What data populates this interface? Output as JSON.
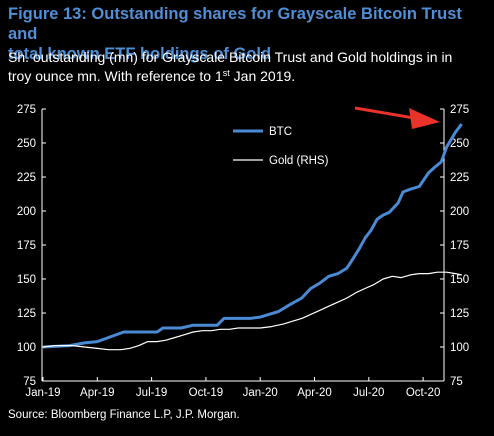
{
  "title_line1": "Figure 13: Outstanding shares for Grayscale Bitcoin Trust and",
  "title_line2": "total known ETF holdings of Gold",
  "subtitle_line1": "Sh. outstanding (mn) for Grayscale Bitcoin Trust and Gold holdings in in",
  "subtitle_line2_pre": "troy ounce mn. With reference to 1",
  "subtitle_sup": "st",
  "subtitle_line2_post": " Jan 2019.",
  "source": "Source: Bloomberg Finance L.P, J.P. Morgan.",
  "colors": {
    "btc": "#4a8ad4",
    "gold": "#ffffff",
    "arrow": "#e8322a",
    "title": "#4f8fd6",
    "background": "#000000"
  },
  "chart_data": {
    "type": "line",
    "x_ticks": [
      "Jan-19",
      "Apr-19",
      "Jul-19",
      "Oct-19",
      "Jan-20",
      "Apr-20",
      "Jul-20",
      "Oct-20"
    ],
    "y_ticks_left": [
      75,
      100,
      125,
      150,
      175,
      200,
      225,
      250,
      275
    ],
    "y_ticks_right": [
      75,
      100,
      125,
      150,
      175,
      200,
      225,
      250,
      275
    ],
    "ylim": [
      75,
      275
    ],
    "legend_position": "top-left",
    "annotation": "red arrow pointing at the latest BTC value (top-right)",
    "series": [
      {
        "name": "BTC",
        "axis": "left",
        "color": "#4a8ad4",
        "points": [
          [
            "2019-01-01",
            100
          ],
          [
            "2019-02-15",
            101
          ],
          [
            "2019-03-10",
            103
          ],
          [
            "2019-04-01",
            104
          ],
          [
            "2019-04-20",
            107
          ],
          [
            "2019-05-15",
            111
          ],
          [
            "2019-06-15",
            111
          ],
          [
            "2019-07-10",
            111
          ],
          [
            "2019-07-20",
            114
          ],
          [
            "2019-08-20",
            114
          ],
          [
            "2019-09-10",
            116
          ],
          [
            "2019-10-01",
            116
          ],
          [
            "2019-10-20",
            116
          ],
          [
            "2019-11-01",
            121
          ],
          [
            "2019-12-15",
            121
          ],
          [
            "2020-01-01",
            122
          ],
          [
            "2020-02-01",
            126
          ],
          [
            "2020-02-20",
            131
          ],
          [
            "2020-03-10",
            136
          ],
          [
            "2020-03-25",
            143
          ],
          [
            "2020-04-10",
            147
          ],
          [
            "2020-04-25",
            152
          ],
          [
            "2020-05-10",
            154
          ],
          [
            "2020-05-25",
            158
          ],
          [
            "2020-06-05",
            165
          ],
          [
            "2020-06-15",
            172
          ],
          [
            "2020-06-25",
            180
          ],
          [
            "2020-07-05",
            186
          ],
          [
            "2020-07-15",
            194
          ],
          [
            "2020-07-25",
            197
          ],
          [
            "2020-08-05",
            199
          ],
          [
            "2020-08-20",
            206
          ],
          [
            "2020-08-28",
            214
          ],
          [
            "2020-09-10",
            216
          ],
          [
            "2020-09-25",
            218
          ],
          [
            "2020-10-10",
            228
          ],
          [
            "2020-10-20",
            232
          ],
          [
            "2020-11-01",
            236
          ],
          [
            "2020-11-10",
            247
          ],
          [
            "2020-11-25",
            258
          ],
          [
            "2020-12-05",
            264
          ]
        ]
      },
      {
        "name": "Gold (RHS)",
        "axis": "right",
        "color": "#ffffff",
        "points": [
          [
            "2019-01-01",
            100
          ],
          [
            "2019-01-20",
            101
          ],
          [
            "2019-02-20",
            101
          ],
          [
            "2019-03-10",
            100
          ],
          [
            "2019-04-01",
            99
          ],
          [
            "2019-04-20",
            98
          ],
          [
            "2019-05-10",
            98
          ],
          [
            "2019-05-25",
            99
          ],
          [
            "2019-06-10",
            101
          ],
          [
            "2019-06-25",
            104
          ],
          [
            "2019-07-10",
            104
          ],
          [
            "2019-07-25",
            105
          ],
          [
            "2019-08-10",
            107
          ],
          [
            "2019-08-25",
            109
          ],
          [
            "2019-09-10",
            111
          ],
          [
            "2019-09-25",
            112
          ],
          [
            "2019-10-10",
            112
          ],
          [
            "2019-10-25",
            113
          ],
          [
            "2019-11-10",
            113
          ],
          [
            "2019-11-25",
            114
          ],
          [
            "2019-12-10",
            114
          ],
          [
            "2020-01-01",
            114
          ],
          [
            "2020-01-20",
            115
          ],
          [
            "2020-02-10",
            117
          ],
          [
            "2020-02-25",
            119
          ],
          [
            "2020-03-10",
            121
          ],
          [
            "2020-03-25",
            124
          ],
          [
            "2020-04-10",
            127
          ],
          [
            "2020-04-25",
            130
          ],
          [
            "2020-05-10",
            133
          ],
          [
            "2020-05-25",
            136
          ],
          [
            "2020-06-10",
            140
          ],
          [
            "2020-06-25",
            143
          ],
          [
            "2020-07-10",
            146
          ],
          [
            "2020-07-25",
            150
          ],
          [
            "2020-08-10",
            152
          ],
          [
            "2020-08-25",
            151
          ],
          [
            "2020-09-10",
            153
          ],
          [
            "2020-09-25",
            154
          ],
          [
            "2020-10-10",
            154
          ],
          [
            "2020-10-25",
            155
          ],
          [
            "2020-11-10",
            155
          ],
          [
            "2020-11-25",
            154
          ],
          [
            "2020-12-05",
            153
          ]
        ]
      }
    ]
  }
}
